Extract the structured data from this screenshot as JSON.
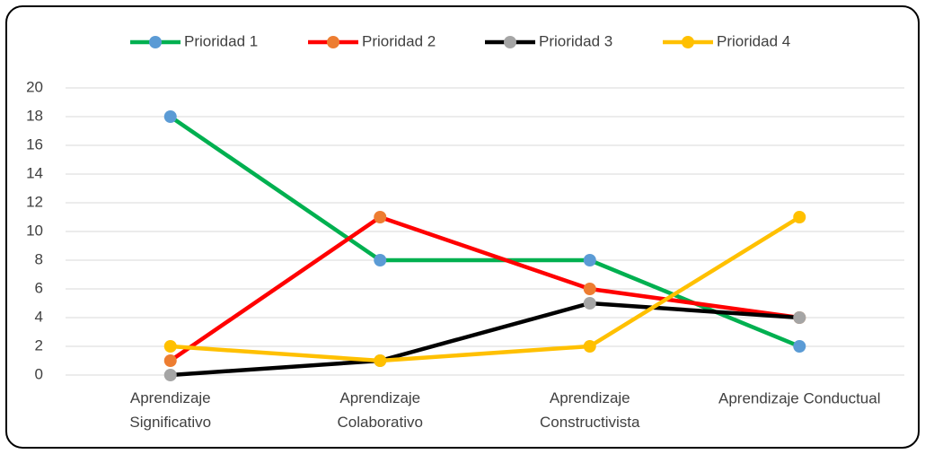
{
  "chart_data": {
    "type": "line",
    "categories": [
      "Aprendizaje Significativo",
      "Aprendizaje Colaborativo",
      "Aprendizaje Constructivista",
      "Aprendizaje Conductual"
    ],
    "series": [
      {
        "name": "Prioridad 1",
        "color": "#00b050",
        "marker_color": "#5b9bd5",
        "values": [
          18,
          8,
          8,
          2
        ]
      },
      {
        "name": "Prioridad 2",
        "color": "#ff0000",
        "marker_color": "#ed7d31",
        "values": [
          1,
          11,
          6,
          4
        ]
      },
      {
        "name": "Prioridad 3",
        "color": "#000000",
        "marker_color": "#a5a5a5",
        "values": [
          0,
          1,
          5,
          4
        ]
      },
      {
        "name": "Prioridad 4",
        "color": "#ffc000",
        "marker_color": "#ffc000",
        "values": [
          2,
          1,
          2,
          11
        ]
      }
    ],
    "ylim": [
      0,
      20
    ],
    "yticks": [
      0,
      2,
      4,
      6,
      8,
      10,
      12,
      14,
      16,
      18,
      20
    ],
    "grid": true,
    "legend": "top"
  }
}
